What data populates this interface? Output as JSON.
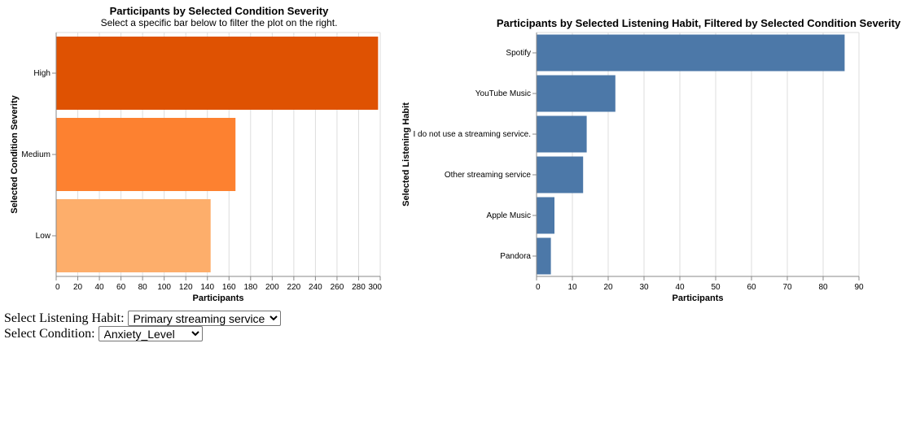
{
  "colors": {
    "high": "#df5202",
    "medium": "#fd8130",
    "low": "#fdae6b",
    "blue": "#4c78a8",
    "grid": "#dddddd",
    "axis": "#888888"
  },
  "controls": {
    "habit_label": "Select Listening Habit:",
    "habit_value": "Primary streaming service",
    "condition_label": "Select Condition:",
    "condition_value": "Anxiety_Level"
  },
  "chart_data": [
    {
      "type": "bar",
      "orientation": "horizontal",
      "title": "Participants by Selected Condition Severity",
      "subtitle": "Select a specific bar below to filter the plot on the right.",
      "xlabel": "Participants",
      "ylabel": "Selected Condition Severity",
      "categories": [
        "High",
        "Medium",
        "Low"
      ],
      "values": [
        298,
        166,
        143
      ],
      "colors": [
        "#df5202",
        "#fd8130",
        "#fdae6b"
      ],
      "xlim": [
        0,
        300
      ],
      "xticks": [
        0,
        20,
        40,
        60,
        80,
        100,
        120,
        140,
        160,
        180,
        200,
        220,
        240,
        260,
        280,
        300
      ],
      "grid": true
    },
    {
      "type": "bar",
      "orientation": "horizontal",
      "title": "Participants by Selected Listening Habit, Filtered by Selected Condition Severity",
      "xlabel": "Participants",
      "ylabel": "Selected Listening Habit",
      "categories": [
        "Spotify",
        "YouTube Music",
        "I do not use a streaming service.",
        "Other streaming service",
        "Apple Music",
        "Pandora"
      ],
      "values": [
        86,
        22,
        14,
        13,
        5,
        4
      ],
      "xlim": [
        0,
        90
      ],
      "xticks": [
        0,
        10,
        20,
        30,
        40,
        50,
        60,
        70,
        80,
        90
      ],
      "grid": true
    }
  ]
}
